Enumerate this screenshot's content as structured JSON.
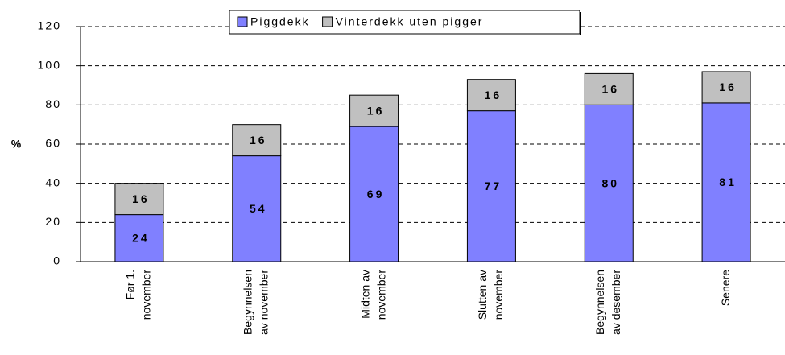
{
  "chart_data": {
    "type": "bar",
    "stacked": true,
    "y_label": "%",
    "categories": [
      [
        "Før 1.",
        "november"
      ],
      [
        "Begynnelsen",
        "av november"
      ],
      [
        "Midten av",
        "november"
      ],
      [
        "Slutten av",
        "november"
      ],
      [
        "Begynnelsen",
        "av desember"
      ],
      [
        "Senere"
      ]
    ],
    "series": [
      {
        "name": "Piggdekk",
        "color": "#8080ff",
        "values": [
          24,
          54,
          69,
          77,
          80,
          81
        ]
      },
      {
        "name": "Vinterdekk uten pigger",
        "color": "#c0c0c0",
        "values": [
          16,
          16,
          16,
          16,
          16,
          16
        ]
      }
    ],
    "ylim": [
      0,
      120
    ],
    "yticks": [
      0,
      20,
      40,
      60,
      80,
      100,
      120
    ],
    "grid": true,
    "legend": "top"
  }
}
